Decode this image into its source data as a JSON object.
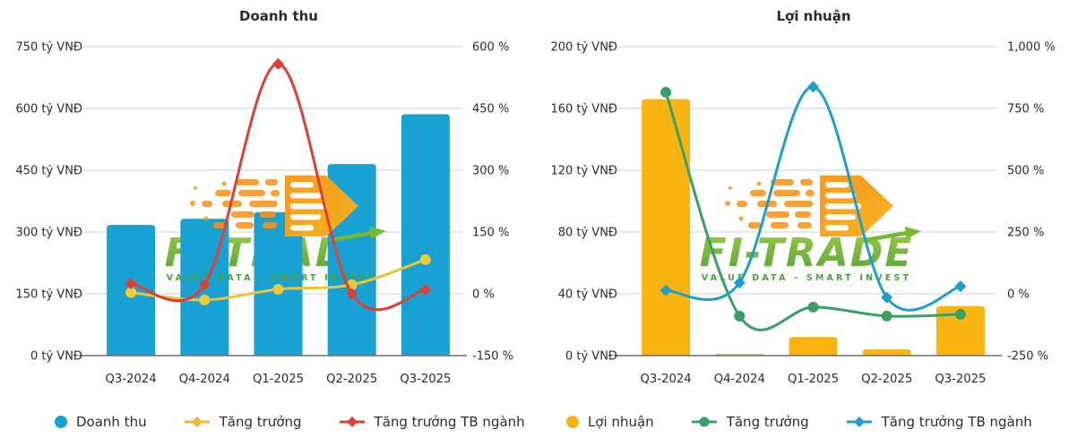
{
  "watermark": {
    "brand": "FI-TRADE",
    "tagline": "VALUE DATA - SMART INVEST",
    "text_gradient_top": "#97C93D",
    "text_gradient_bottom": "#4E9E2F",
    "tagline_color": "#4AA23C",
    "arrow_color": "#76BB2F",
    "logo_gradient_start": "#F7941E",
    "logo_gradient_end": "#FCB415"
  },
  "chart_data": [
    {
      "type": "bar+line",
      "title": "Doanh thu",
      "categories": [
        "Q3-2024",
        "Q4-2024",
        "Q1-2025",
        "Q2-2025",
        "Q3-2025"
      ],
      "left_axis": {
        "unit": "tỷ VNĐ",
        "min": 0,
        "max": 750,
        "step": 150,
        "tick_labels": [
          "750 tỷ VNĐ",
          "600 tỷ VNĐ",
          "450 tỷ VNĐ",
          "300 tỷ VNĐ",
          "150 tỷ VNĐ",
          "0 tỷ VNĐ"
        ]
      },
      "right_axis": {
        "unit": "%",
        "min": -150,
        "max": 600,
        "step": 150,
        "tick_labels": [
          "600 %",
          "450 %",
          "300 %",
          "150 %",
          "0 %",
          "-150 %"
        ]
      },
      "bar_series": {
        "name": "Doanh thu",
        "axis": "left",
        "color": "#18A2D3",
        "values": [
          317,
          332,
          348,
          465,
          586
        ]
      },
      "line_series": [
        {
          "name": "Tăng trưởng",
          "axis": "right",
          "color": "#EFC32E",
          "marker": "circle",
          "marker_color": "#F3C836",
          "values": [
            3,
            -15,
            11,
            22,
            83
          ]
        },
        {
          "name": "Tăng trưởng TB ngành",
          "axis": "right",
          "color": "#DC3F36",
          "marker": "diamond",
          "marker_color": "#DC3F36",
          "values": [
            25,
            22,
            558,
            0,
            10
          ]
        }
      ],
      "legend": [
        {
          "label": "Doanh thu",
          "swatch": "circle",
          "color": "#18A2D3"
        },
        {
          "label": "Tăng trưởng",
          "swatch": "line-diamond",
          "color": "#F0B92B"
        },
        {
          "label": "Tăng trưởng TB ngành",
          "swatch": "line-diamond",
          "color": "#DC3F36"
        }
      ],
      "grid_color": "#CFCFCF",
      "baseline_color": "#6E6E6E",
      "label_color": "#2B2B2B"
    },
    {
      "type": "bar+line",
      "title": "Lợi nhuận",
      "categories": [
        "Q3-2024",
        "Q4-2024",
        "Q1-2025",
        "Q2-2025",
        "Q3-2025"
      ],
      "left_axis": {
        "unit": "tỷ VNĐ",
        "min": 0,
        "max": 200,
        "step": 40,
        "tick_labels": [
          "200 tỷ VNĐ",
          "160 tỷ VNĐ",
          "120 tỷ VNĐ",
          "80 tỷ VNĐ",
          "40 tỷ VNĐ",
          "0 tỷ VNĐ"
        ]
      },
      "right_axis": {
        "unit": "%",
        "min": -250,
        "max": 1000,
        "step": 250,
        "tick_labels": [
          "1,000 %",
          "750 %",
          "500 %",
          "250 %",
          "0 %",
          "-250 %"
        ]
      },
      "bar_series": {
        "name": "Lợi nhuận",
        "axis": "left",
        "color": "#F9B411",
        "values": [
          166,
          1,
          12,
          4,
          32
        ]
      },
      "line_series": [
        {
          "name": "Tăng trưởng",
          "axis": "right",
          "color": "#38A162",
          "marker": "circle",
          "marker_color": "#38A162",
          "values": [
            815,
            -90,
            -54,
            -90,
            -83
          ]
        },
        {
          "name": "Tăng trưởng TB ngành",
          "axis": "right",
          "color": "#1F9DCB",
          "marker": "diamond",
          "marker_color": "#1F9DCB",
          "values": [
            14,
            45,
            837,
            -15,
            30
          ]
        }
      ],
      "legend": [
        {
          "label": "Lợi nhuận",
          "swatch": "circle",
          "color": "#F9B411"
        },
        {
          "label": "Tăng trưởng",
          "swatch": "line-circle",
          "color": "#38A162"
        },
        {
          "label": "Tăng trưởng TB ngành",
          "swatch": "line-diamond",
          "color": "#1F9DCB"
        }
      ],
      "grid_color": "#CFCFCF",
      "baseline_color": "#6E6E6E",
      "label_color": "#2B2B2B"
    }
  ]
}
